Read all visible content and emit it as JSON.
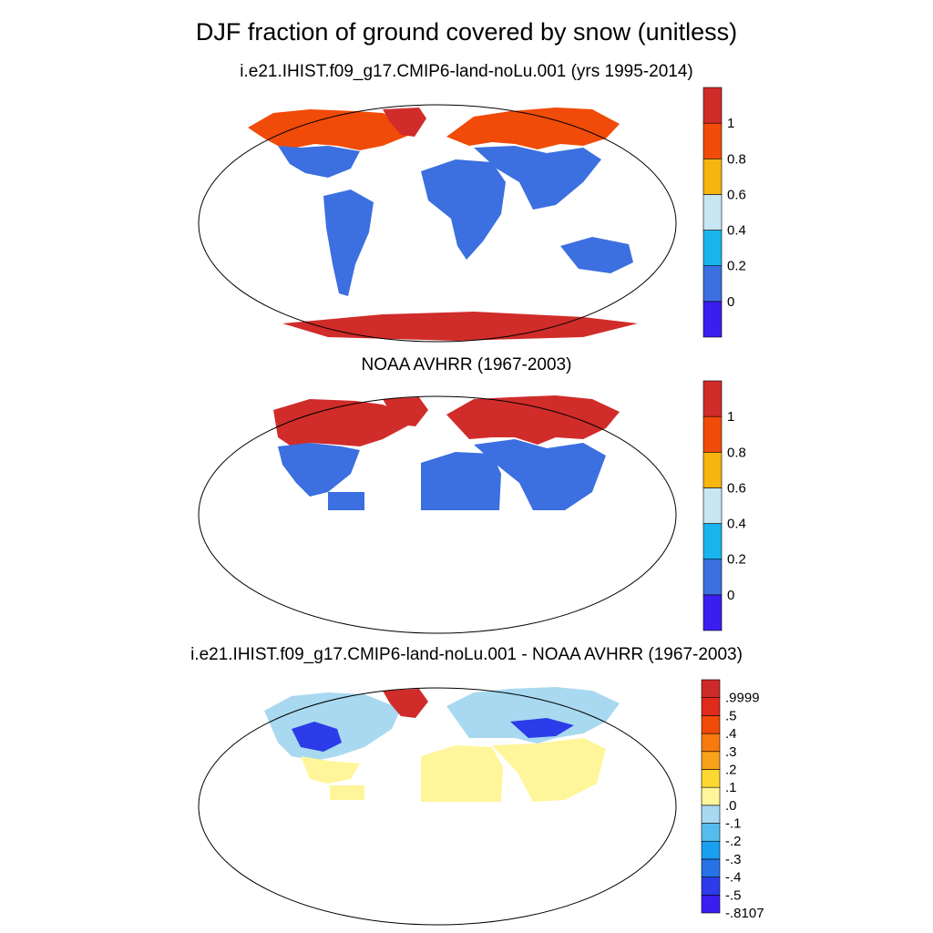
{
  "title": "DJF fraction of ground covered by snow (unitless)",
  "panels": [
    {
      "title": "i.e21.IHIST.f09_g17.CMIP6-land-noLu.001 (yrs 1995-2014)",
      "colorbar": {
        "colors": [
          "#3a1ef0",
          "#3c6fe0",
          "#19b4ee",
          "#c8e6f2",
          "#f6b50f",
          "#f04b08",
          "#d02c2a"
        ],
        "labels": [
          "0",
          "0.2",
          "0.4",
          "0.6",
          "0.8",
          "1"
        ]
      }
    },
    {
      "title": "NOAA AVHRR (1967-2003)",
      "colorbar": {
        "colors": [
          "#3a1ef0",
          "#3c6fe0",
          "#19b4ee",
          "#c8e6f2",
          "#f6b50f",
          "#f04b08",
          "#d02c2a"
        ],
        "labels": [
          "0",
          "0.2",
          "0.4",
          "0.6",
          "0.8",
          "1"
        ]
      }
    },
    {
      "title": "i.e21.IHIST.f09_g17.CMIP6-land-noLu.001 - NOAA AVHRR (1967-2003)",
      "colorbar": {
        "colors": [
          "#3a1ef0",
          "#2b3ce8",
          "#2672e6",
          "#1a9ff0",
          "#56bcee",
          "#a8d9f0",
          "#fff59a",
          "#fdd831",
          "#f8a21a",
          "#f77a0e",
          "#f04b08",
          "#df2a1c",
          "#cd2a2a"
        ],
        "labels": [
          "-.8107",
          "-.5",
          "-.4",
          "-.3",
          "-.2",
          "-.1",
          ".0",
          ".1",
          ".2",
          ".3",
          ".4",
          ".5",
          ".9999"
        ]
      }
    }
  ],
  "fills": {
    "snow_high": "#d02c2a",
    "snow_mid": "#f04b08",
    "snow_low": "#3c6fe0",
    "diff_low": "#fff59a",
    "diff_neg": "#a8d9f0",
    "diff_neg2": "#56bcee",
    "diff_neg3": "#2b3ce8"
  }
}
